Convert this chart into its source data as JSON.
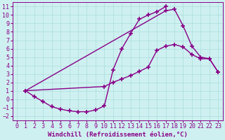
{
  "background_color": "#cff0f0",
  "grid_color": "#aadddd",
  "line_color": "#880088",
  "marker": "+",
  "marker_size": 4,
  "marker_edge_width": 1.2,
  "line_width": 1.0,
  "xlabel": "Windchill (Refroidissement éolien,°C)",
  "xlabel_fontsize": 6.5,
  "tick_fontsize": 6.0,
  "xlim": [
    -0.5,
    23.5
  ],
  "ylim": [
    -2.5,
    11.5
  ],
  "xticks": [
    0,
    1,
    2,
    3,
    4,
    5,
    6,
    7,
    8,
    9,
    10,
    11,
    12,
    13,
    14,
    15,
    16,
    17,
    18,
    19,
    20,
    21,
    22,
    23
  ],
  "yticks": [
    -2,
    -1,
    0,
    1,
    2,
    3,
    4,
    5,
    6,
    7,
    8,
    9,
    10,
    11
  ],
  "series1_x": [
    1,
    2,
    3,
    4,
    5,
    6,
    7,
    8,
    9,
    10,
    11,
    12,
    13,
    14,
    15,
    16,
    17
  ],
  "series1_y": [
    1.0,
    0.3,
    -0.3,
    -0.9,
    -1.2,
    -1.4,
    -1.5,
    -1.5,
    -1.3,
    -0.8,
    3.5,
    6.0,
    7.8,
    9.5,
    10.0,
    10.4,
    11.0
  ],
  "series2_x": [
    1,
    17,
    18,
    19,
    20,
    21,
    22,
    23
  ],
  "series2_y": [
    1.0,
    10.5,
    10.7,
    8.7,
    6.3,
    5.0,
    4.8,
    3.2
  ],
  "series3_x": [
    1,
    10,
    11,
    12,
    13,
    14,
    15,
    16,
    17,
    18,
    19,
    20,
    21,
    22,
    23
  ],
  "series3_y": [
    1.0,
    1.5,
    2.0,
    2.4,
    2.8,
    3.3,
    3.8,
    5.8,
    6.3,
    6.5,
    6.2,
    5.3,
    4.8,
    4.8,
    3.2
  ]
}
